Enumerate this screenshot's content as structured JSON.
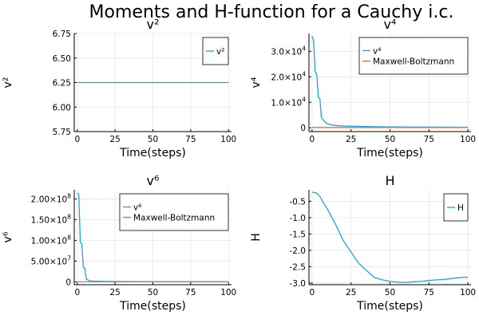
{
  "title": "Moments and H-function for a Cauchy i.c.",
  "colors": {
    "series1": "#1fa1e0",
    "series2": "#e26f46"
  },
  "chart_data": [
    {
      "type": "line",
      "title": "v²",
      "xlabel": "Time(steps)",
      "ylabel": "v²",
      "xlim": [
        -2,
        102
      ],
      "ylim": [
        5.75,
        6.75
      ],
      "xticks": [
        {
          "v": 0,
          "label": "0"
        },
        {
          "v": 25,
          "label": "25"
        },
        {
          "v": 50,
          "label": "50"
        },
        {
          "v": 75,
          "label": "75"
        },
        {
          "v": 100,
          "label": "100"
        }
      ],
      "yticks": [
        {
          "v": 5.75,
          "label": "5.75"
        },
        {
          "v": 6.0,
          "label": "6.00"
        },
        {
          "v": 6.25,
          "label": "6.25"
        },
        {
          "v": 6.5,
          "label": "6.50"
        },
        {
          "v": 6.75,
          "label": "6.75"
        }
      ],
      "legend": "top-right",
      "series": [
        {
          "name": "v²",
          "color": "#1fa1e0",
          "points": [
            [
              0,
              6.25
            ],
            [
              100,
              6.25
            ]
          ]
        }
      ]
    },
    {
      "type": "line",
      "title": "v⁴",
      "xlabel": "Time(steps)",
      "ylabel": "v⁴",
      "xlim": [
        -2,
        102
      ],
      "ylim": [
        -1500,
        37000
      ],
      "xticks": [
        {
          "v": 0,
          "label": "0"
        },
        {
          "v": 25,
          "label": "25"
        },
        {
          "v": 50,
          "label": "50"
        },
        {
          "v": 75,
          "label": "75"
        },
        {
          "v": 100,
          "label": "100"
        }
      ],
      "yticks": [
        {
          "v": 0,
          "label": "0"
        },
        {
          "v": 10000,
          "base": "1.0×10",
          "exp": "4"
        },
        {
          "v": 20000,
          "base": "2.0×10",
          "exp": "4"
        },
        {
          "v": 30000,
          "base": "3.0×10",
          "exp": "4"
        }
      ],
      "legend": "top-right",
      "series": [
        {
          "name": "v⁴",
          "color": "#1fa1e0",
          "points": [
            [
              0,
              36000
            ],
            [
              1,
              34000
            ],
            [
              2,
              22000
            ],
            [
              3,
              21000
            ],
            [
              4,
              12000
            ],
            [
              5,
              11500
            ],
            [
              6,
              4000
            ],
            [
              8,
              2500
            ],
            [
              10,
              1500
            ],
            [
              15,
              900
            ],
            [
              20,
              700
            ],
            [
              25,
              600
            ],
            [
              40,
              400
            ],
            [
              60,
              300
            ],
            [
              80,
              250
            ],
            [
              100,
              200
            ]
          ]
        },
        {
          "name": "Maxwell-Boltzmann",
          "color": "#e26f46",
          "points": [
            [
              0,
              117
            ],
            [
              100,
              117
            ]
          ]
        }
      ]
    },
    {
      "type": "line",
      "title": "v⁶",
      "xlabel": "Time(steps)",
      "ylabel": "v⁶",
      "xlim": [
        -2,
        102
      ],
      "ylim": [
        -7000000,
        222000000
      ],
      "xticks": [
        {
          "v": 0,
          "label": "0"
        },
        {
          "v": 25,
          "label": "25"
        },
        {
          "v": 50,
          "label": "50"
        },
        {
          "v": 75,
          "label": "75"
        },
        {
          "v": 100,
          "label": "100"
        }
      ],
      "yticks": [
        {
          "v": 0,
          "label": "0"
        },
        {
          "v": 50000000,
          "base": "5.00×10",
          "exp": "7"
        },
        {
          "v": 100000000,
          "base": "1.00×10",
          "exp": "8"
        },
        {
          "v": 150000000,
          "base": "1.50×10",
          "exp": "8"
        },
        {
          "v": 200000000,
          "base": "2.00×10",
          "exp": "8"
        }
      ],
      "legend": "top-right",
      "series": [
        {
          "name": "v⁶",
          "color": "#1fa1e0",
          "points": [
            [
              0,
              215000000
            ],
            [
              1,
              210000000
            ],
            [
              2,
              95000000
            ],
            [
              3,
              92000000
            ],
            [
              4,
              35000000
            ],
            [
              5,
              33000000
            ],
            [
              6,
              6000000
            ],
            [
              8,
              3000000
            ],
            [
              10,
              1500000
            ],
            [
              20,
              800000
            ],
            [
              50,
              400000
            ],
            [
              100,
              300000
            ]
          ]
        },
        {
          "name": "Maxwell-Boltzmann",
          "color": "#e26f46",
          "points": [
            [
              0,
              2000
            ],
            [
              100,
              2000
            ]
          ]
        }
      ]
    },
    {
      "type": "line",
      "title": "H",
      "xlabel": "Time(steps)",
      "ylabel": "H",
      "xlim": [
        -2,
        102
      ],
      "ylim": [
        -3.05,
        -0.15
      ],
      "xticks": [
        {
          "v": 0,
          "label": "0"
        },
        {
          "v": 25,
          "label": "25"
        },
        {
          "v": 50,
          "label": "50"
        },
        {
          "v": 75,
          "label": "75"
        },
        {
          "v": 100,
          "label": "100"
        }
      ],
      "yticks": [
        {
          "v": -0.5,
          "label": "-0.5"
        },
        {
          "v": -1.0,
          "label": "-1.0"
        },
        {
          "v": -1.5,
          "label": "-1.5"
        },
        {
          "v": -2.0,
          "label": "-2.0"
        },
        {
          "v": -2.5,
          "label": "-2.5"
        },
        {
          "v": -3.0,
          "label": "-3.0"
        }
      ],
      "legend": "top-right",
      "series": [
        {
          "name": "H",
          "color": "#1fa1e0",
          "points": [
            [
              0,
              -0.22
            ],
            [
              3,
              -0.25
            ],
            [
              5,
              -0.35
            ],
            [
              8,
              -0.6
            ],
            [
              10,
              -0.75
            ],
            [
              15,
              -1.2
            ],
            [
              20,
              -1.7
            ],
            [
              25,
              -2.05
            ],
            [
              30,
              -2.4
            ],
            [
              35,
              -2.62
            ],
            [
              40,
              -2.83
            ],
            [
              45,
              -2.9
            ],
            [
              50,
              -2.95
            ],
            [
              55,
              -2.97
            ],
            [
              60,
              -2.98
            ],
            [
              65,
              -2.96
            ],
            [
              70,
              -2.95
            ],
            [
              75,
              -2.92
            ],
            [
              80,
              -2.9
            ],
            [
              85,
              -2.89
            ],
            [
              90,
              -2.86
            ],
            [
              95,
              -2.83
            ],
            [
              100,
              -2.82
            ]
          ]
        }
      ]
    }
  ]
}
